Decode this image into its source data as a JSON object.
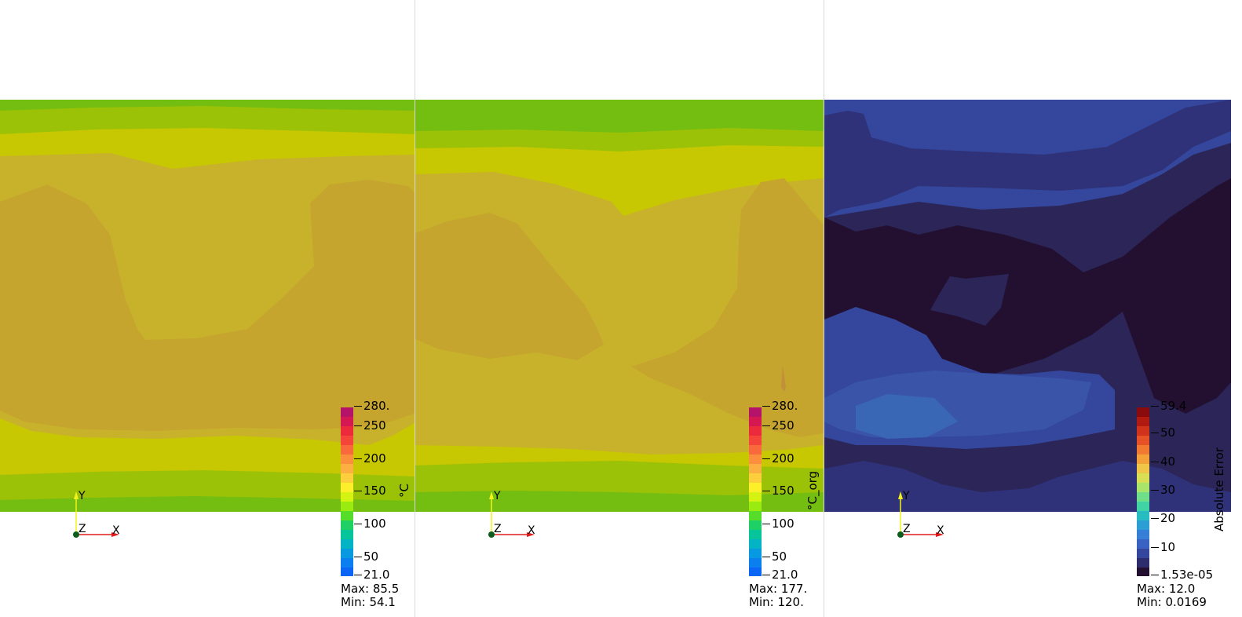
{
  "views": [
    {
      "id": "prediction",
      "colorbar": {
        "title": "°C",
        "ticks": [
          "280.",
          "250",
          "200",
          "150",
          "100",
          "50",
          "21.0"
        ],
        "max_label": "Max: 85.5",
        "min_label": "Min: 54.1"
      },
      "axes": {
        "x": "X",
        "y": "Y",
        "z": "Z"
      }
    },
    {
      "id": "original",
      "colorbar": {
        "title": "°C_org",
        "ticks": [
          "280.",
          "250",
          "200",
          "150",
          "100",
          "50",
          "21.0"
        ],
        "max_label": "Max: 177.",
        "min_label": "Min: 120."
      },
      "axes": {
        "x": "X",
        "y": "Y",
        "z": "Z"
      }
    },
    {
      "id": "error",
      "colorbar": {
        "title": "Absolute Error",
        "ticks": [
          "59.4",
          "50",
          "40",
          "30",
          "20",
          "10",
          "1.53e-05"
        ],
        "max_label": "Max: 12.0",
        "min_label": "Min: 0.0169"
      },
      "axes": {
        "x": "X",
        "y": "Y",
        "z": "Z"
      }
    }
  ],
  "colors": {
    "temp_light_green": "#74bd11",
    "temp_green_yellow": "#9cc208",
    "temp_yellow": "#c7c702",
    "temp_olive": "#c8b22b",
    "temp_tan": "#c6a52e",
    "err_blue_light": "#3a66b6",
    "err_blue_mid": "#34479d",
    "err_blue_dark": "#2f3278",
    "err_navy": "#2b2558",
    "err_darkest": "#231031"
  }
}
